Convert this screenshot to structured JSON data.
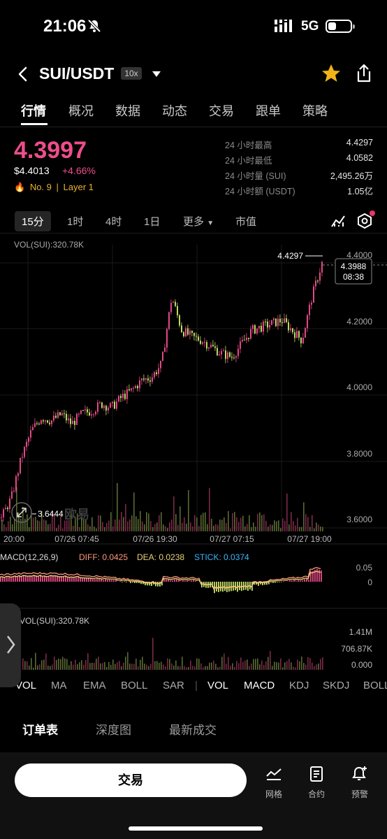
{
  "status": {
    "time": "21:06",
    "network": "5G"
  },
  "header": {
    "title": "SUI/USDT",
    "leverage": "10x"
  },
  "tabs": [
    "行情",
    "概况",
    "数据",
    "动态",
    "交易",
    "跟单",
    "策略"
  ],
  "price": {
    "last": "4.3997",
    "usd": "$4.4013",
    "change": "+4.66%",
    "rank": "No. 9",
    "sep": "|",
    "tag": "Layer 1"
  },
  "stats": [
    {
      "label": "24 小时最高",
      "value": "4.4297"
    },
    {
      "label": "24 小时最低",
      "value": "4.0582"
    },
    {
      "label": "24 小时量 (SUI)",
      "value": "2,495.26万"
    },
    {
      "label": "24 小时额 (USDT)",
      "value": "1.05亿"
    }
  ],
  "intervals": {
    "items": [
      "15分",
      "1时",
      "4时",
      "1日"
    ],
    "more": "更多",
    "mcap": "市值"
  },
  "chart": {
    "vol_label": "VOL(SUI):320.78K",
    "high_marker": "4.4297",
    "low_marker": "3.6444",
    "cursor_price": "4.3988",
    "countdown": "08:38",
    "watermark": "欧易",
    "price_ticks": [
      "4.4000",
      "4.2000",
      "4.0000",
      "3.8000",
      "3.6000"
    ],
    "time_ticks": [
      "20:00",
      "07/26 07:45",
      "07/26 19:30",
      "07/27 07:15",
      "07/27 19:00"
    ],
    "macd_label": "MACD(12,26,9)",
    "diff": "DIFF: 0.0425",
    "dea": "DEA: 0.0238",
    "stick": "STICK: 0.0374",
    "macd_ticks": [
      "0.05",
      "0"
    ],
    "vol2_label": "VOL(SUI):320.78K",
    "vol_ticks": [
      "1.41M",
      "706.87K",
      "0.000"
    ]
  },
  "chart_data": {
    "type": "candlestick",
    "close_path": [
      3.64,
      3.7,
      3.82,
      3.9,
      3.94,
      3.93,
      3.95,
      3.92,
      3.95,
      3.96,
      3.98,
      3.97,
      4.0,
      4.02,
      4.05,
      4.06,
      4.1,
      4.3,
      4.2,
      4.18,
      4.17,
      4.15,
      4.13,
      4.12,
      4.16,
      4.2,
      4.21,
      4.22,
      4.23,
      4.2,
      4.17,
      4.3,
      4.4
    ],
    "ylim": [
      3.6,
      4.43
    ],
    "colors": {
      "up": "#ee4d8c",
      "down": "#c6e36a",
      "diff": "#ff9a7a",
      "dea": "#e7d277",
      "stick": "#3db6ff"
    }
  },
  "indicators": [
    "VOL",
    "MA",
    "EMA",
    "BOLL",
    "SAR",
    "|",
    "VOL",
    "MACD",
    "KDJ",
    "SKDJ",
    "BOLL"
  ],
  "orderbook_tabs": [
    "订单表",
    "深度图",
    "最新成交"
  ],
  "bottom": {
    "trade": "交易",
    "grid": "网格",
    "contract": "合约",
    "alert": "预警"
  }
}
